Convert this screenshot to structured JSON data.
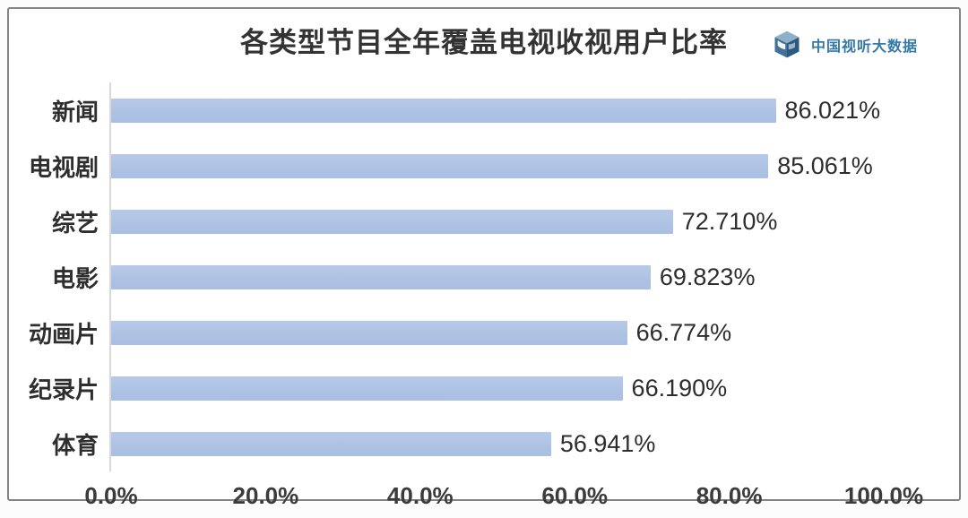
{
  "header": {
    "logo_text": "中国视听大数据"
  },
  "chart_data": {
    "type": "bar",
    "orientation": "horizontal",
    "title": "各类型节目全年覆盖电视收视用户比率",
    "categories": [
      "新闻",
      "电视剧",
      "综艺",
      "电影",
      "动画片",
      "纪录片",
      "体育"
    ],
    "values": [
      86.021,
      85.061,
      72.71,
      69.823,
      66.774,
      66.19,
      56.941
    ],
    "value_labels": [
      "86.021%",
      "85.061%",
      "72.710%",
      "69.823%",
      "66.774%",
      "66.190%",
      "56.941%"
    ],
    "x_ticks": [
      "0.0%",
      "20.0%",
      "40.0%",
      "60.0%",
      "80.0%",
      "100.0%"
    ],
    "xlabel": "",
    "ylabel": "",
    "xlim": [
      0,
      100
    ],
    "grid": false,
    "legend": "none",
    "bar_color": "#aec3e3"
  },
  "colors": {
    "bar": "#aec3e3",
    "axis_line": "#d9d9d9",
    "frame_border": "#848484",
    "title_text": "#333333",
    "brand_text": "#3579a8"
  }
}
